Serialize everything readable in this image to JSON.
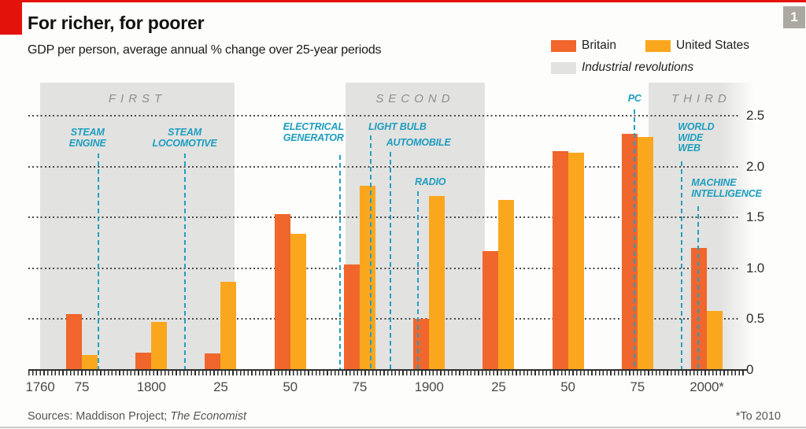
{
  "page": {
    "figure_number": "1"
  },
  "header": {
    "title": "For richer, for poorer",
    "subtitle": "GDP per person, average annual % change over 25-year periods"
  },
  "legend": {
    "bands_label": "Industrial revolutions"
  },
  "footer": {
    "sources_prefix": "Sources: Maddison Project; ",
    "sources_italic": "The Economist",
    "note": "*To 2010"
  },
  "chart_data": {
    "type": "bar",
    "title": "For richer, for poorer",
    "subtitle": "GDP per person, average annual % change over 25-year periods",
    "categories": [
      "1750-75",
      "1775-1800",
      "1800-25",
      "1825-50",
      "1850-75",
      "1875-1900",
      "1900-25",
      "1925-50",
      "1950-75",
      "1975-2000*"
    ],
    "period_end_years": [
      1775,
      1800,
      1825,
      1850,
      1875,
      1900,
      1925,
      1950,
      1975,
      2000
    ],
    "series": [
      {
        "name": "Britain",
        "color": "#F0662C",
        "values": [
          0.55,
          0.17,
          0.16,
          1.53,
          1.04,
          0.5,
          1.17,
          2.15,
          2.32,
          1.2
        ]
      },
      {
        "name": "United States",
        "color": "#FAA71E",
        "values": [
          0.15,
          0.47,
          0.87,
          1.34,
          1.81,
          1.71,
          1.67,
          2.14,
          2.29,
          0.58
        ]
      }
    ],
    "ylim": [
      0,
      2.5
    ],
    "yticks": [
      0,
      0.5,
      1,
      1.5,
      2,
      2.5
    ],
    "ytick_labels": [
      "0",
      "0.5",
      "1.0",
      "1.5",
      "2.0",
      "2.5"
    ],
    "x_axis_tick_years": [
      1760,
      1775,
      1800,
      1825,
      1850,
      1875,
      1900,
      1925,
      1950,
      1975,
      2000
    ],
    "x_axis_tick_labels": [
      "1760",
      "75",
      "1800",
      "25",
      "50",
      "75",
      "1900",
      "25",
      "50",
      "75",
      "2000*"
    ],
    "grid": "dotted horizontal lines",
    "legend_position": "top-right",
    "bands": {
      "label": "Industrial revolutions",
      "color": "#E2E2E0",
      "items": [
        {
          "label": "FIRST",
          "from": 1760,
          "to": 1830
        },
        {
          "label": "SECOND",
          "from": 1870,
          "to": 1920
        },
        {
          "label": "THIRD",
          "from": 1979,
          "to": 2017,
          "fade_right": true
        }
      ]
    },
    "annotations": [
      {
        "label": "STEAM\nENGINE",
        "year": 1781
      },
      {
        "label": "STEAM\nLOCOMOTIVE",
        "year": 1812
      },
      {
        "label": "ELECTRICAL\nGENERATOR",
        "year": 1868
      },
      {
        "label": "LIGHT BULB",
        "year": 1879
      },
      {
        "label": "AUTOMOBILE",
        "year": 1886
      },
      {
        "label": "RADIO",
        "year": 1896
      },
      {
        "label": "PC",
        "year": 1974
      },
      {
        "label": "WORLD\nWIDE\nWEB",
        "year": 1991
      },
      {
        "label": "MACHINE\nINTELLIGENCE",
        "year": 1997
      }
    ],
    "annotation_color": "#24A0C0",
    "footnote": "*To 2010"
  }
}
